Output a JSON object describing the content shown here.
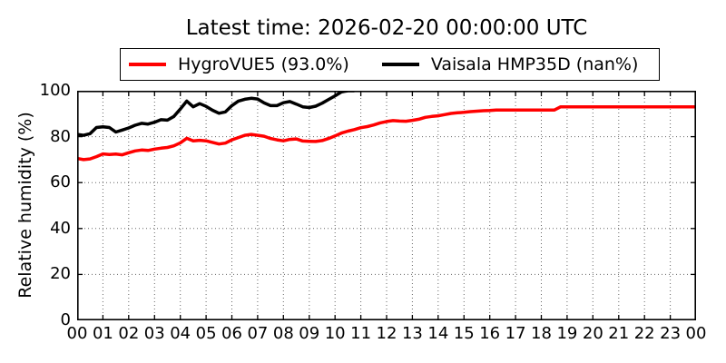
{
  "title": "Latest time: 2026-02-20 00:00:00 UTC",
  "ylabel": "Relative humidity (%)",
  "legend": [
    {
      "label": "HygroVUE5 (93.0%)",
      "color": "#ff0000"
    },
    {
      "label": "Vaisala HMP35D (nan%)",
      "color": "#000000"
    }
  ],
  "chart_data": {
    "type": "line",
    "title": "Latest time: 2026-02-20 00:00:00 UTC",
    "xlabel": "",
    "ylabel": "Relative humidity (%)",
    "xlim": [
      0,
      24
    ],
    "ylim": [
      0,
      100
    ],
    "xticks": [
      "00",
      "01",
      "02",
      "03",
      "04",
      "05",
      "06",
      "07",
      "08",
      "09",
      "10",
      "11",
      "12",
      "13",
      "14",
      "15",
      "16",
      "17",
      "18",
      "19",
      "20",
      "21",
      "22",
      "23",
      "00"
    ],
    "ytick_values": [
      0,
      20,
      40,
      60,
      80,
      100
    ],
    "ytick_labels": [
      "0",
      "20",
      "40",
      "60",
      "80",
      "100"
    ],
    "grid": "dotted",
    "legend_position": "top-center-outside",
    "series": [
      {
        "name": "HygroVUE5 (93.0%)",
        "color": "#ff0000",
        "latest_value": "93.0%",
        "x": [
          0,
          0.25,
          0.5,
          0.75,
          1,
          1.25,
          1.5,
          1.75,
          2,
          2.25,
          2.5,
          2.75,
          3,
          3.25,
          3.5,
          3.75,
          4,
          4.25,
          4.5,
          4.75,
          5,
          5.25,
          5.5,
          5.75,
          6,
          6.25,
          6.5,
          6.75,
          7,
          7.25,
          7.5,
          7.75,
          8,
          8.25,
          8.5,
          8.75,
          9,
          9.25,
          9.5,
          9.75,
          10,
          10.25,
          10.5,
          10.75,
          11,
          11.25,
          11.5,
          11.75,
          12,
          12.25,
          12.5,
          12.75,
          13,
          13.25,
          13.5,
          13.75,
          14,
          14.25,
          14.5,
          14.75,
          15,
          15.25,
          15.5,
          15.75,
          16,
          16.25,
          16.5,
          16.75,
          17,
          17.25,
          17.5,
          17.75,
          18,
          18.25,
          18.5,
          18.75,
          19,
          19.25,
          19.5,
          19.75,
          20,
          20.25,
          20.5,
          20.75,
          21,
          21.25,
          21.5,
          21.75,
          22,
          22.25,
          22.5,
          22.75,
          23,
          23.25,
          23.5,
          23.75,
          24
        ],
        "y": [
          70.5,
          70.0,
          70.3,
          71.3,
          72.5,
          72.2,
          72.4,
          72.1,
          73.0,
          73.8,
          74.2,
          74.0,
          74.6,
          75.0,
          75.3,
          76.0,
          77.3,
          79.3,
          78.2,
          78.4,
          78.2,
          77.5,
          76.8,
          77.2,
          78.6,
          79.6,
          80.6,
          81.0,
          80.6,
          80.2,
          79.2,
          78.6,
          78.2,
          78.8,
          79.0,
          78.1,
          78.0,
          77.9,
          78.3,
          79.2,
          80.3,
          81.6,
          82.4,
          83.1,
          83.9,
          84.4,
          85.1,
          86.0,
          86.6,
          87.0,
          86.8,
          86.7,
          87.1,
          87.6,
          88.4,
          88.8,
          89.1,
          89.6,
          90.1,
          90.4,
          90.6,
          90.9,
          91.1,
          91.3,
          91.4,
          91.6,
          91.6,
          91.6,
          91.6,
          91.6,
          91.6,
          91.6,
          91.6,
          91.6,
          91.6,
          93.0,
          93.0,
          93.0,
          93.0,
          93.0,
          93.0,
          93.0,
          93.0,
          93.0,
          93.0,
          93.0,
          93.0,
          93.0,
          93.0,
          93.0,
          93.0,
          93.0,
          93.0,
          93.0,
          93.0,
          93.0,
          93.0
        ]
      },
      {
        "name": "Vaisala HMP35D (nan%)",
        "color": "#000000",
        "latest_value": "nan%",
        "x": [
          0,
          0.25,
          0.5,
          0.75,
          1,
          1.25,
          1.5,
          1.75,
          2,
          2.25,
          2.5,
          2.75,
          3,
          3.25,
          3.5,
          3.75,
          4,
          4.25,
          4.5,
          4.75,
          5,
          5.25,
          5.5,
          5.75,
          6,
          6.25,
          6.5,
          6.75,
          7,
          7.25,
          7.5,
          7.75,
          8,
          8.25,
          8.5,
          8.75,
          9,
          9.25,
          9.5,
          9.75,
          10,
          10.25,
          10.5,
          10.75
        ],
        "y": [
          81.0,
          80.6,
          81.3,
          84.0,
          84.3,
          84.0,
          82.0,
          82.9,
          83.8,
          85.0,
          85.8,
          85.5,
          86.3,
          87.4,
          87.2,
          88.8,
          92.0,
          95.5,
          93.0,
          94.4,
          93.2,
          91.5,
          90.2,
          90.8,
          93.5,
          95.5,
          96.3,
          96.7,
          96.4,
          94.7,
          93.5,
          93.5,
          94.8,
          95.3,
          94.2,
          93.0,
          92.7,
          93.3,
          94.6,
          96.2,
          97.8,
          99.5,
          100.0,
          100.0
        ]
      }
    ]
  }
}
